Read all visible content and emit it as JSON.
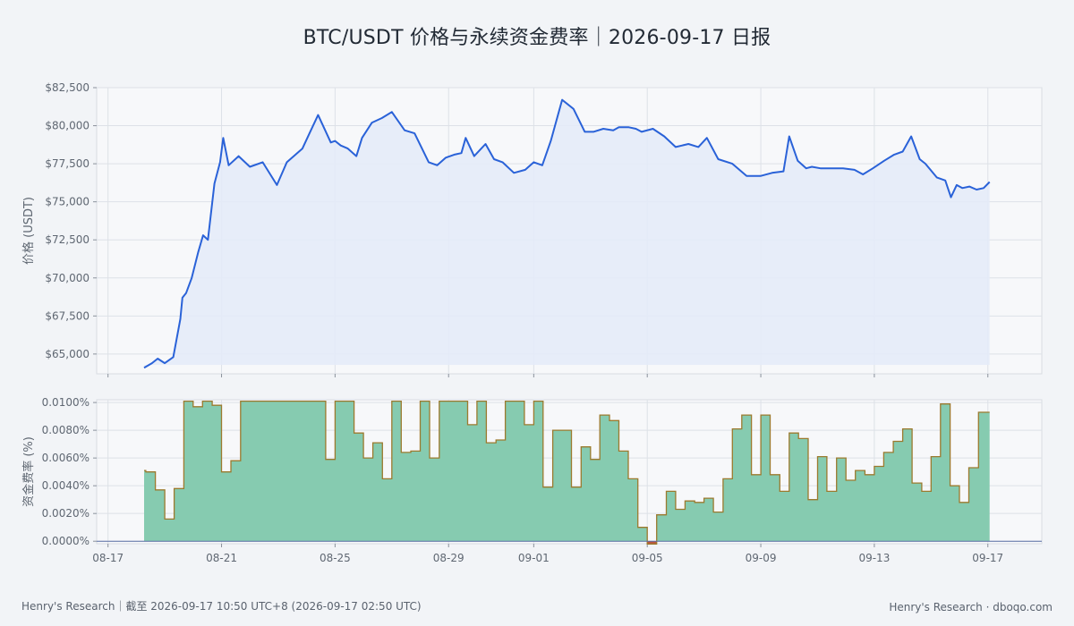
{
  "title": "BTC/USDT 价格与永续资金费率｜2026-09-17 日报",
  "footer": {
    "left": "Henry's Research｜截至 2026-09-17 10:50 UTC+8 (2026-09-17 02:50 UTC)",
    "right": "Henry's Research · dboqo.com"
  },
  "colors": {
    "price_line": "#2a62d8",
    "price_fill": "#e4ebf8",
    "funding_fill": "#86cbb0",
    "funding_line": "#9c7a2e",
    "negative": "#c8412c",
    "plot_bg": "#f7f8fa",
    "grid": "#dde1e7"
  },
  "chart_data": [
    {
      "type": "area",
      "name": "price",
      "ylabel": "价格 (USDT)",
      "ylim": [
        63700,
        82500
      ],
      "yticks": [
        65000,
        67500,
        70000,
        72500,
        75000,
        77500,
        80000,
        82500
      ],
      "yticklabels": [
        "$65,000",
        "$67,500",
        "$70,000",
        "$72,500",
        "$75,000",
        "$77,500",
        "$80,000",
        "$82,500"
      ],
      "x_days": [
        1.27,
        1.55,
        1.75,
        2.0,
        2.3,
        2.55,
        2.62,
        2.75,
        2.95,
        3.18,
        3.35,
        3.52,
        3.75,
        3.95,
        4.06,
        4.25,
        4.6,
        5.0,
        5.45,
        5.95,
        6.3,
        6.85,
        7.1,
        7.4,
        7.85,
        8.0,
        8.2,
        8.45,
        8.75,
        8.95,
        9.3,
        9.65,
        10.0,
        10.45,
        10.8,
        11.3,
        11.6,
        11.9,
        12.2,
        12.45,
        12.6,
        12.9,
        13.1,
        13.3,
        13.6,
        13.9,
        14.3,
        14.7,
        15.0,
        15.3,
        15.6,
        16.0,
        16.4,
        16.8,
        17.1,
        17.45,
        17.8,
        18.0,
        18.35,
        18.6,
        18.8,
        19.2,
        19.6,
        20.0,
        20.45,
        20.8,
        21.1,
        21.5,
        22.0,
        22.5,
        23.0,
        23.4,
        23.8,
        24.0,
        24.3,
        24.6,
        24.8,
        25.1,
        25.5,
        25.9,
        26.3,
        26.6,
        26.95,
        27.35,
        27.7,
        28.0,
        28.3,
        28.6,
        28.8,
        29.2,
        29.5,
        29.7,
        29.9,
        30.1,
        30.35,
        30.6,
        30.85,
        31.06
      ],
      "price": [
        64100,
        64400,
        64700,
        64400,
        64800,
        67300,
        68700,
        69000,
        70000,
        71700,
        72800,
        72500,
        76200,
        77600,
        79200,
        77400,
        78000,
        77300,
        77600,
        76100,
        77600,
        78500,
        79500,
        80700,
        78900,
        79000,
        78700,
        78500,
        78000,
        79200,
        80200,
        80500,
        80900,
        79700,
        79500,
        77600,
        77400,
        77900,
        78100,
        78200,
        79200,
        78000,
        78400,
        78800,
        77800,
        77600,
        76900,
        77100,
        77600,
        77400,
        79000,
        81700,
        81100,
        79600,
        79600,
        79800,
        79700,
        79900,
        79900,
        79800,
        79600,
        79800,
        79300,
        78600,
        78800,
        78600,
        79200,
        77800,
        77500,
        76700,
        76700,
        76900,
        77000,
        79300,
        77700,
        77200,
        77300,
        77200,
        77200,
        77200,
        77100,
        76800,
        77200,
        77700,
        78100,
        78300,
        79300,
        77800,
        77500,
        76600,
        76400,
        75300,
        76100,
        75900,
        76000,
        75800,
        75900,
        76300
      ]
    },
    {
      "type": "area",
      "name": "funding",
      "ylabel": "资金费率 (%)",
      "ylim": [
        -0.00018,
        0.0102
      ],
      "yticks": [
        0.0,
        0.002,
        0.004,
        0.006,
        0.008,
        0.01
      ],
      "yticklabels": [
        "0.0000%",
        "0.0020%",
        "0.0040%",
        "0.0060%",
        "0.0080%",
        "0.0100%"
      ],
      "x_days": [
        1.27,
        1.33,
        1.67,
        2.0,
        2.33,
        2.67,
        3.0,
        3.33,
        3.67,
        4.0,
        4.33,
        4.67,
        5.0,
        5.33,
        5.67,
        6.0,
        6.33,
        6.67,
        7.0,
        7.33,
        7.67,
        8.0,
        8.33,
        8.67,
        9.0,
        9.33,
        9.67,
        10.0,
        10.33,
        10.67,
        11.0,
        11.33,
        11.67,
        12.0,
        12.33,
        12.67,
        13.0,
        13.33,
        13.67,
        14.0,
        14.33,
        14.67,
        15.0,
        15.33,
        15.67,
        16.0,
        16.33,
        16.67,
        17.0,
        17.33,
        17.67,
        18.0,
        18.33,
        18.67,
        19.0,
        19.33,
        19.67,
        20.0,
        20.33,
        20.67,
        21.0,
        21.33,
        21.67,
        22.0,
        22.33,
        22.67,
        23.0,
        23.33,
        23.67,
        24.0,
        24.33,
        24.67,
        25.0,
        25.33,
        25.67,
        26.0,
        26.33,
        26.67,
        27.0,
        27.33,
        27.67,
        28.0,
        28.33,
        28.67,
        29.0,
        29.33,
        29.67,
        30.0,
        30.33,
        30.67,
        31.0,
        31.06
      ],
      "funding": [
        0.0051,
        0.005,
        0.0037,
        0.0016,
        0.0038,
        0.0101,
        0.0097,
        0.0101,
        0.0098,
        0.005,
        0.0058,
        0.0101,
        0.0101,
        0.0101,
        0.0101,
        0.0101,
        0.0101,
        0.0101,
        0.0101,
        0.0101,
        0.0059,
        0.0101,
        0.0101,
        0.0078,
        0.006,
        0.0071,
        0.0045,
        0.0101,
        0.0064,
        0.0065,
        0.0101,
        0.006,
        0.0101,
        0.0101,
        0.0101,
        0.0084,
        0.0101,
        0.0071,
        0.0073,
        0.0101,
        0.0101,
        0.0084,
        0.0101,
        0.0039,
        0.008,
        0.008,
        0.0039,
        0.0068,
        0.0059,
        0.0091,
        0.0087,
        0.0065,
        0.0045,
        0.001,
        -0.0002,
        0.0019,
        0.0036,
        0.0023,
        0.0029,
        0.0028,
        0.0031,
        0.0021,
        0.0045,
        0.0081,
        0.0091,
        0.0048,
        0.0091,
        0.0048,
        0.0036,
        0.0078,
        0.0074,
        0.003,
        0.0061,
        0.0036,
        0.006,
        0.0044,
        0.0051,
        0.0048,
        0.0054,
        0.0064,
        0.0072,
        0.0081,
        0.0042,
        0.0036,
        0.0061,
        0.0099,
        0.004,
        0.0028,
        0.0053,
        0.0093,
        0.0093,
        0.0093
      ]
    }
  ],
  "xaxis": {
    "tick_days": [
      0,
      4,
      8,
      12,
      15,
      19,
      23,
      27,
      31
    ],
    "tick_labels": [
      "08-17",
      "08-21",
      "08-25",
      "08-29",
      "09-01",
      "09-05",
      "09-09",
      "09-13",
      "09-17"
    ],
    "xlim_days": [
      -0.4,
      32.9
    ]
  }
}
